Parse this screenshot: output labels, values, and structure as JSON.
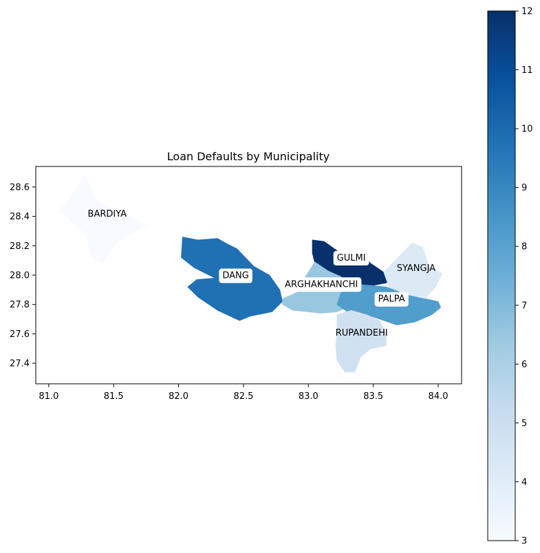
{
  "chart_data": {
    "type": "choropleth",
    "title": "Loan Defaults by Municipality",
    "xlabel": "",
    "ylabel": "",
    "xlim": [
      80.9,
      84.18
    ],
    "ylim": [
      27.26,
      28.74
    ],
    "x_ticks": [
      81.0,
      81.5,
      82.0,
      82.5,
      83.0,
      83.5,
      84.0
    ],
    "x_tick_labels": [
      "81.0",
      "81.5",
      "82.0",
      "82.5",
      "83.0",
      "83.5",
      "84.0"
    ],
    "y_ticks": [
      27.4,
      27.6,
      27.8,
      28.0,
      28.2,
      28.4,
      28.6
    ],
    "y_tick_labels": [
      "27.4",
      "27.6",
      "27.8",
      "28.0",
      "28.2",
      "28.4",
      "28.6"
    ],
    "colorbar": {
      "min": 3,
      "max": 12,
      "colormap": "Blues",
      "ticks": [
        3,
        4,
        5,
        6,
        7,
        8,
        9,
        10,
        11,
        12
      ],
      "tick_labels": [
        "3",
        "4",
        "5",
        "6",
        "7",
        "8",
        "9",
        "10",
        "11",
        "12"
      ]
    },
    "districts": [
      {
        "name": "BARDIYA",
        "value": 3.0,
        "label_lon": 81.45,
        "label_lat": 28.42,
        "boxed": false,
        "outline": [
          [
            81.28,
            28.68
          ],
          [
            81.36,
            28.52
          ],
          [
            81.5,
            28.44
          ],
          [
            81.63,
            28.4
          ],
          [
            81.76,
            28.34
          ],
          [
            81.62,
            28.28
          ],
          [
            81.5,
            28.2
          ],
          [
            81.42,
            28.08
          ],
          [
            81.33,
            28.13
          ],
          [
            81.28,
            28.28
          ],
          [
            81.18,
            28.36
          ],
          [
            81.08,
            28.44
          ],
          [
            81.16,
            28.52
          ]
        ]
      },
      {
        "name": "DANG",
        "value": 9.8,
        "label_lon": 82.44,
        "label_lat": 28.0,
        "boxed": true,
        "outline": [
          [
            82.03,
            28.26
          ],
          [
            82.15,
            28.24
          ],
          [
            82.3,
            28.25
          ],
          [
            82.36,
            28.22
          ],
          [
            82.45,
            28.18
          ],
          [
            82.58,
            28.06
          ],
          [
            82.7,
            28.0
          ],
          [
            82.78,
            27.9
          ],
          [
            82.8,
            27.82
          ],
          [
            82.72,
            27.75
          ],
          [
            82.55,
            27.72
          ],
          [
            82.47,
            27.69
          ],
          [
            82.3,
            27.76
          ],
          [
            82.15,
            27.85
          ],
          [
            82.07,
            27.92
          ],
          [
            82.14,
            27.97
          ],
          [
            82.28,
            27.98
          ],
          [
            82.12,
            28.05
          ],
          [
            82.02,
            28.12
          ]
        ]
      },
      {
        "name": "GULMI",
        "value": 12.0,
        "label_lon": 83.33,
        "label_lat": 28.12,
        "boxed": true,
        "outline": [
          [
            83.03,
            28.24
          ],
          [
            83.12,
            28.23
          ],
          [
            83.2,
            28.18
          ],
          [
            83.28,
            28.13
          ],
          [
            83.35,
            28.1
          ],
          [
            83.45,
            28.11
          ],
          [
            83.48,
            28.08
          ],
          [
            83.58,
            28.02
          ],
          [
            83.62,
            27.95
          ],
          [
            83.5,
            27.93
          ],
          [
            83.35,
            27.94
          ],
          [
            83.25,
            27.98
          ],
          [
            83.15,
            28.02
          ],
          [
            83.05,
            28.08
          ],
          [
            83.03,
            28.15
          ]
        ]
      },
      {
        "name": "ARGHAKHANCHI",
        "value": 6.5,
        "label_lon": 83.1,
        "label_lat": 27.94,
        "boxed": true,
        "outline": [
          [
            82.8,
            27.84
          ],
          [
            82.88,
            27.87
          ],
          [
            82.97,
            27.91
          ],
          [
            82.97,
            27.98
          ],
          [
            83.05,
            28.09
          ],
          [
            83.15,
            28.03
          ],
          [
            83.25,
            27.99
          ],
          [
            83.33,
            27.92
          ],
          [
            83.38,
            27.85
          ],
          [
            83.3,
            27.78
          ],
          [
            83.22,
            27.75
          ],
          [
            83.1,
            27.74
          ],
          [
            83.0,
            27.75
          ],
          [
            82.88,
            27.76
          ],
          [
            82.8,
            27.8
          ]
        ]
      },
      {
        "name": "PALPA",
        "value": 8.2,
        "label_lon": 83.64,
        "label_lat": 27.84,
        "boxed": true,
        "outline": [
          [
            83.25,
            27.88
          ],
          [
            83.35,
            27.94
          ],
          [
            83.48,
            27.93
          ],
          [
            83.6,
            27.92
          ],
          [
            83.75,
            27.87
          ],
          [
            83.9,
            27.84
          ],
          [
            84.0,
            27.82
          ],
          [
            84.02,
            27.78
          ],
          [
            83.95,
            27.73
          ],
          [
            83.82,
            27.68
          ],
          [
            83.68,
            27.66
          ],
          [
            83.55,
            27.7
          ],
          [
            83.45,
            27.73
          ],
          [
            83.3,
            27.75
          ],
          [
            83.22,
            27.8
          ]
        ]
      },
      {
        "name": "SYANGJA",
        "value": 4.2,
        "label_lon": 83.83,
        "label_lat": 28.05,
        "boxed": false,
        "outline": [
          [
            83.7,
            28.13
          ],
          [
            83.8,
            28.22
          ],
          [
            83.88,
            28.19
          ],
          [
            83.93,
            28.06
          ],
          [
            84.03,
            28.01
          ],
          [
            83.98,
            27.92
          ],
          [
            83.9,
            27.84
          ],
          [
            83.75,
            27.87
          ],
          [
            83.62,
            27.92
          ],
          [
            83.58,
            28.02
          ]
        ]
      },
      {
        "name": "RUPANDEHI",
        "value": 4.8,
        "label_lon": 83.41,
        "label_lat": 27.61,
        "boxed": false,
        "outline": [
          [
            83.22,
            27.73
          ],
          [
            83.33,
            27.76
          ],
          [
            83.45,
            27.73
          ],
          [
            83.55,
            27.69
          ],
          [
            83.6,
            27.6
          ],
          [
            83.6,
            27.52
          ],
          [
            83.48,
            27.5
          ],
          [
            83.4,
            27.44
          ],
          [
            83.36,
            27.34
          ],
          [
            83.28,
            27.34
          ],
          [
            83.22,
            27.42
          ],
          [
            83.21,
            27.52
          ],
          [
            83.22,
            27.62
          ]
        ]
      }
    ]
  }
}
